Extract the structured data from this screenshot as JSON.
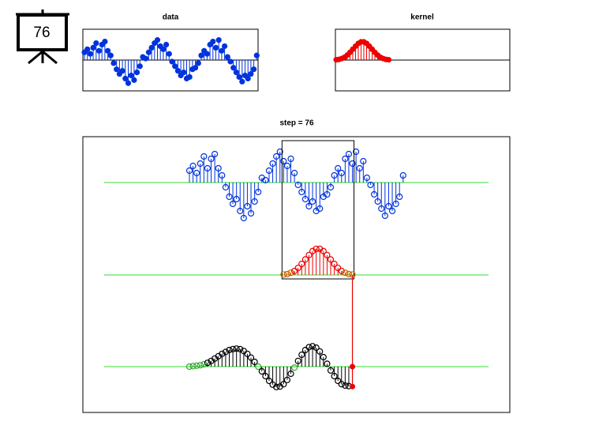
{
  "icon_label": "76",
  "chart_data": [
    {
      "type": "stem",
      "title": "data",
      "color": "#0033dd",
      "ylim": [
        -1,
        1
      ],
      "values": [
        0.25,
        0.35,
        0.2,
        0.4,
        0.55,
        0.3,
        0.5,
        0.6,
        0.3,
        0.15,
        -0.1,
        -0.3,
        -0.45,
        -0.35,
        -0.6,
        -0.75,
        -0.5,
        -0.65,
        -0.4,
        -0.2,
        0.1,
        0.05,
        0.25,
        0.4,
        0.55,
        0.65,
        0.45,
        0.35,
        0.5,
        0.2,
        -0.05,
        -0.2,
        -0.35,
        -0.5,
        -0.4,
        -0.6,
        -0.55,
        -0.3,
        -0.25,
        -0.1,
        0.15,
        0.3,
        0.2,
        0.5,
        0.6,
        0.4,
        0.65,
        0.3,
        0.45,
        0.1,
        -0.05,
        -0.25,
        -0.4,
        -0.55,
        -0.7,
        -0.5,
        -0.6,
        -0.45,
        -0.3,
        0.15
      ]
    },
    {
      "type": "stem",
      "title": "kernel",
      "color": "#ee0000",
      "ylim": [
        -1,
        1
      ],
      "values": [
        0.01,
        0.02,
        0.05,
        0.09,
        0.16,
        0.25,
        0.35,
        0.45,
        0.54,
        0.59,
        0.59,
        0.54,
        0.45,
        0.35,
        0.25,
        0.16,
        0.09,
        0.05,
        0.02,
        0.01
      ]
    },
    {
      "type": "convolution",
      "title": "step = 76",
      "color": "#000000",
      "ylim": [
        -1,
        1
      ],
      "values": [
        0,
        0.01,
        0.02,
        0.03,
        0.05,
        0.08,
        0.12,
        0.17,
        0.22,
        0.27,
        0.31,
        0.35,
        0.37,
        0.38,
        0.37,
        0.33,
        0.27,
        0.19,
        0.1,
        0.0,
        -0.1,
        -0.2,
        -0.3,
        -0.38,
        -0.43,
        -0.42,
        -0.37,
        -0.28,
        -0.15,
        -0.02,
        0.12,
        0.25,
        0.35,
        0.41,
        0.43,
        0.4,
        0.32,
        0.2,
        0.06,
        -0.08,
        -0.2,
        -0.3,
        -0.37,
        -0.4,
        -0.41,
        -0.42
      ]
    }
  ]
}
